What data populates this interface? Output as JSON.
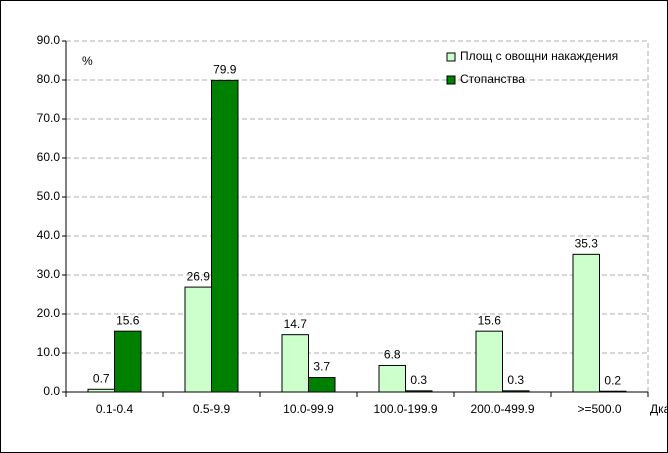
{
  "chart_data": {
    "type": "bar",
    "y_label": "%",
    "x_label": "Дка",
    "categories": [
      "0.1-0.4",
      "0.5-9.9",
      "10.0-99.9",
      "100.0-199.9",
      "200.0-499.9",
      ">=500.0"
    ],
    "series": [
      {
        "name": "Площ с овощни накаждения",
        "color": "#ccffcc",
        "values": [
          0.7,
          26.9,
          14.7,
          6.8,
          15.6,
          35.3
        ]
      },
      {
        "name": "Стопанства",
        "color": "#008000",
        "values": [
          15.6,
          79.9,
          3.7,
          0.3,
          0.3,
          0.2
        ]
      }
    ],
    "ylim": [
      0,
      90
    ],
    "yticks": [
      {
        "value": 0,
        "label": "0.0"
      },
      {
        "value": 10,
        "label": "10.0"
      },
      {
        "value": 20,
        "label": "20.0"
      },
      {
        "value": 30,
        "label": "30.0"
      },
      {
        "value": 40,
        "label": "40.0"
      },
      {
        "value": 50,
        "label": "50.0"
      },
      {
        "value": 60,
        "label": "60.0"
      },
      {
        "value": 70,
        "label": "70.0"
      },
      {
        "value": 80,
        "label": "80.0"
      },
      {
        "value": 90,
        "label": "90.0"
      }
    ],
    "grid": true,
    "legend": "top-right"
  }
}
